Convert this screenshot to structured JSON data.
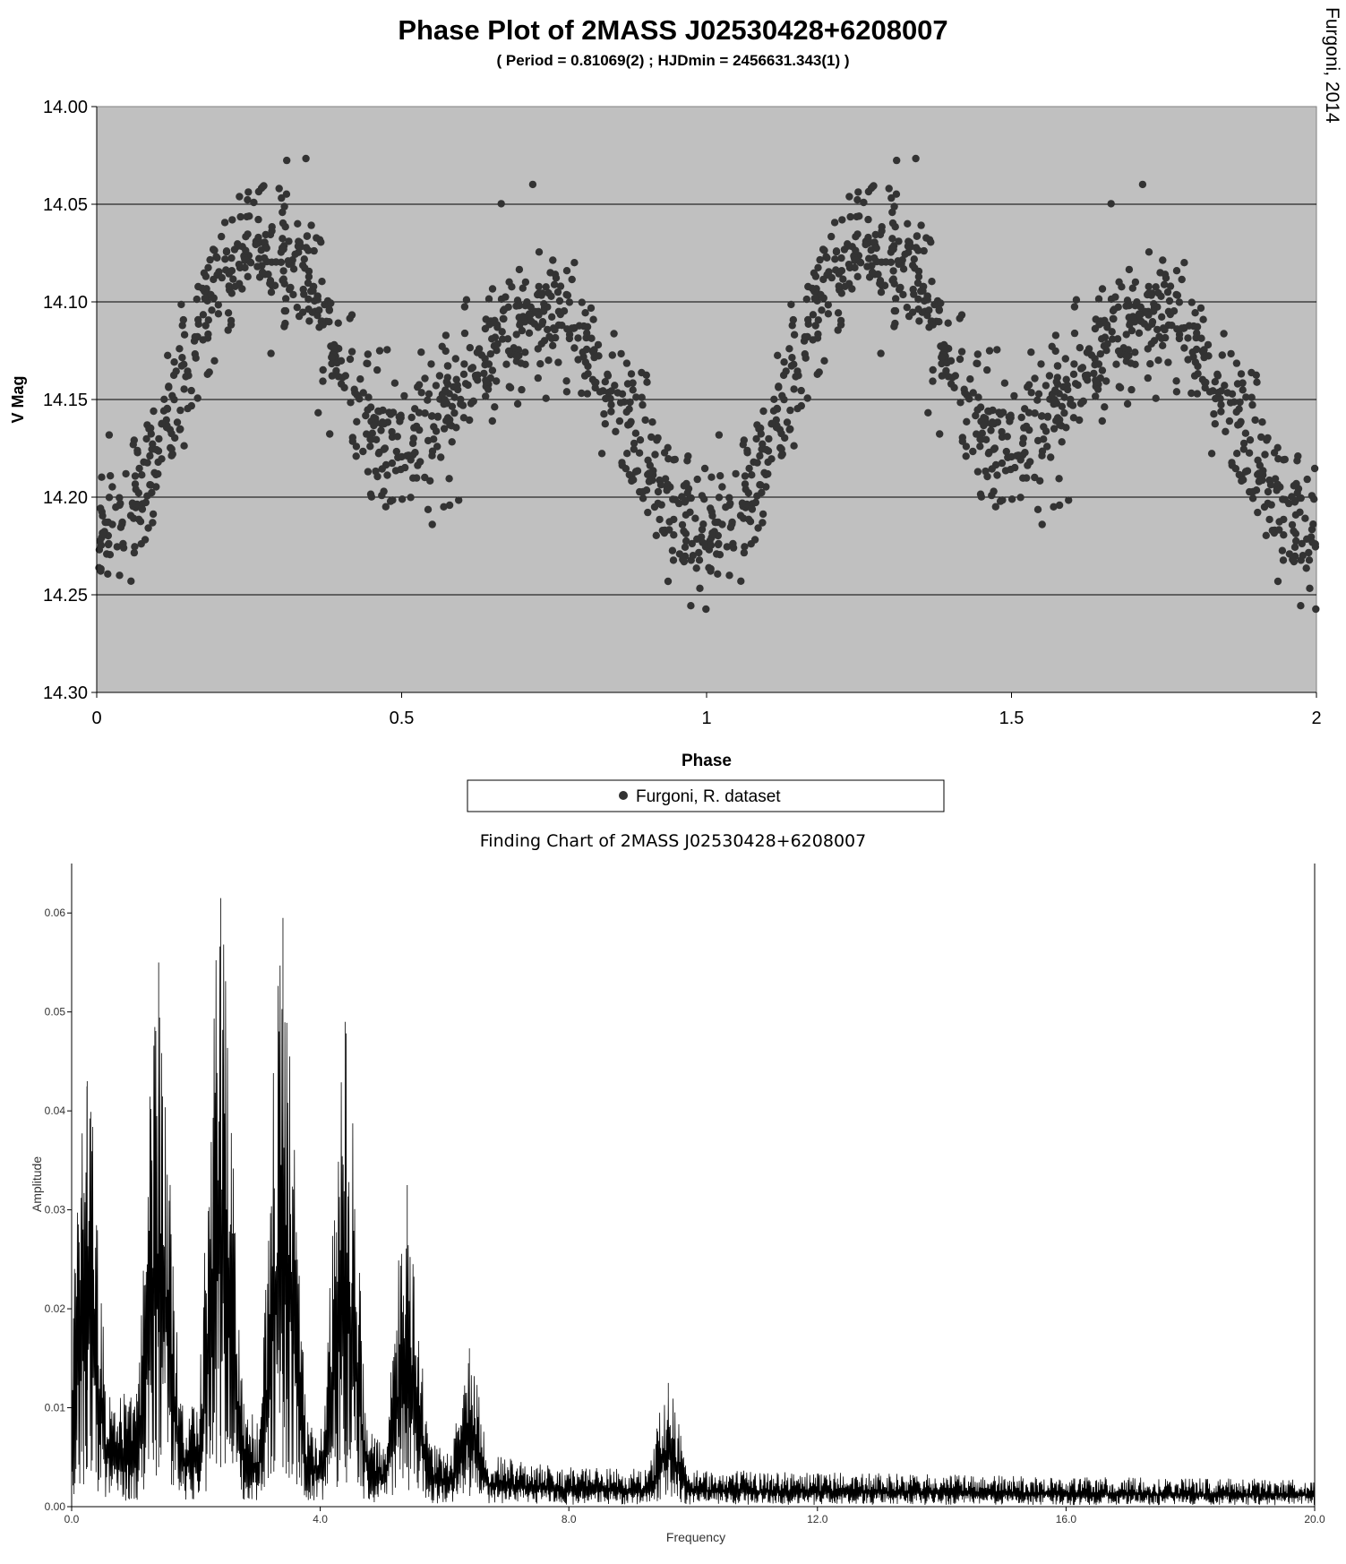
{
  "header": {
    "title": "Phase Plot of 2MASS J02530428+6208007",
    "subtitle": "( Period = 0.81069(2) ; HJDmin = 2456631.343(1) )",
    "credit": "Furgoni, 2014"
  },
  "colors": {
    "plot_background": "#c0c0c0",
    "points": "#333333",
    "gridline": "#000000",
    "spectrum_line": "#000000"
  },
  "chart_data": [
    {
      "type": "scatter",
      "title": "Phase Plot of 2MASS J02530428+6208007",
      "subtitle": "( Period = 0.81069(2) ; HJDmin = 2456631.343(1) )",
      "xlabel": "Phase",
      "ylabel": "V Mag",
      "xlim": [
        0,
        2
      ],
      "ylim": [
        14.3,
        14.0
      ],
      "y_inverted": true,
      "x_ticks": [
        "0",
        "0.5",
        "1",
        "1.5",
        "2"
      ],
      "y_ticks": [
        "14.00",
        "14.05",
        "14.10",
        "14.15",
        "14.20",
        "14.25",
        "14.30"
      ],
      "grid": "horizontal",
      "legend": {
        "position": "bottom",
        "entries": [
          "Furgoni, R. dataset"
        ]
      },
      "series": [
        {
          "name": "Furgoni, R. dataset",
          "marker": "circle",
          "profile": {
            "phase": [
              0.0,
              0.05,
              0.1,
              0.15,
              0.2,
              0.25,
              0.3,
              0.35,
              0.4,
              0.45,
              0.5,
              0.55,
              0.6,
              0.65,
              0.7,
              0.75,
              0.8,
              0.85,
              0.9,
              0.95,
              1.0
            ],
            "vmag": [
              14.222,
              14.205,
              14.175,
              14.135,
              14.095,
              14.07,
              14.075,
              14.095,
              14.135,
              14.165,
              14.175,
              14.165,
              14.145,
              14.125,
              14.11,
              14.105,
              14.12,
              14.15,
              14.18,
              14.21,
              14.222
            ]
          },
          "scatter_sigma_mag": 0.017,
          "points_per_cycle": 900,
          "notes": "Points plotted twice (phase and phase+1)."
        }
      ]
    },
    {
      "type": "line",
      "title": "Finding Chart of 2MASS J02530428+6208007",
      "xlabel": "Frequency",
      "ylabel": "Amplitude",
      "xlim": [
        0.0,
        20.0
      ],
      "ylim": [
        0.0,
        0.065
      ],
      "x_ticks": [
        "0.0",
        "4.0",
        "8.0",
        "12.0",
        "16.0",
        "20.0"
      ],
      "y_ticks": [
        "0.00",
        "0.01",
        "0.02",
        "0.03",
        "0.04",
        "0.05",
        "0.06"
      ],
      "grid": false,
      "peaks": [
        {
          "frequency": 0.25,
          "amplitude": 0.043
        },
        {
          "frequency": 1.4,
          "amplitude": 0.055
        },
        {
          "frequency": 2.4,
          "amplitude": 0.0615
        },
        {
          "frequency": 3.4,
          "amplitude": 0.0595
        },
        {
          "frequency": 4.4,
          "amplitude": 0.049
        },
        {
          "frequency": 5.4,
          "amplitude": 0.0325
        },
        {
          "frequency": 6.4,
          "amplitude": 0.016
        },
        {
          "frequency": 9.6,
          "amplitude": 0.0125
        }
      ],
      "noise_floor": {
        "frequency": [
          0.0,
          6.0,
          8.0,
          12.0,
          16.0,
          20.0
        ],
        "mean_amplitude": [
          0.013,
          0.006,
          0.004,
          0.0035,
          0.003,
          0.0028
        ]
      }
    }
  ]
}
